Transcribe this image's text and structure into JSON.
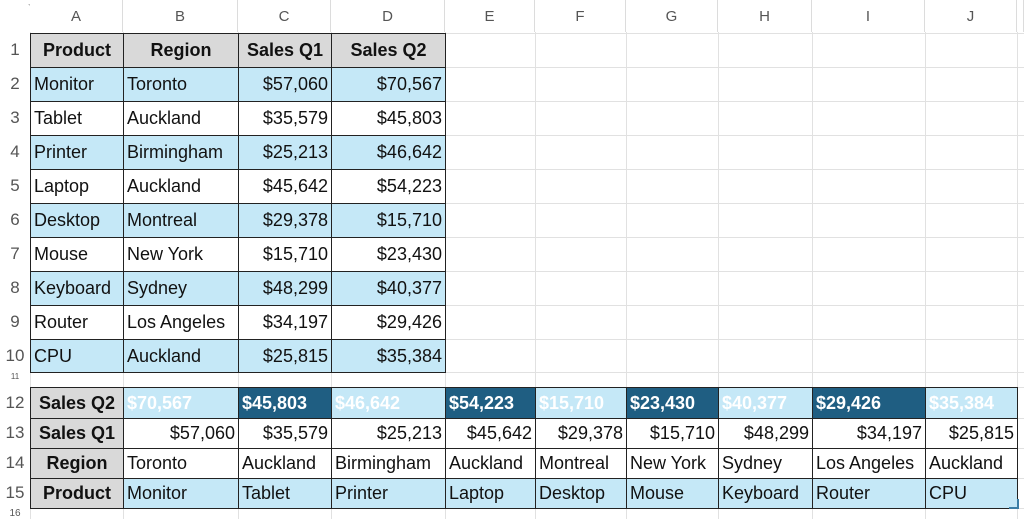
{
  "columns": [
    "A",
    "B",
    "C",
    "D",
    "E",
    "F",
    "G",
    "H",
    "I",
    "J"
  ],
  "rows": [
    "1",
    "2",
    "3",
    "4",
    "5",
    "6",
    "7",
    "8",
    "9",
    "10",
    "11",
    "12",
    "13",
    "14",
    "15",
    "16"
  ],
  "table1": {
    "headers": [
      "Product",
      "Region",
      "Sales Q1",
      "Sales Q2"
    ],
    "data": [
      [
        "Monitor",
        "Toronto",
        "$57,060",
        "$70,567"
      ],
      [
        "Tablet",
        "Auckland",
        "$35,579",
        "$45,803"
      ],
      [
        "Printer",
        "Birmingham",
        "$25,213",
        "$46,642"
      ],
      [
        "Laptop",
        "Auckland",
        "$45,642",
        "$54,223"
      ],
      [
        "Desktop",
        "Montreal",
        "$29,378",
        "$15,710"
      ],
      [
        "Mouse",
        "New York",
        "$15,710",
        "$23,430"
      ],
      [
        "Keyboard",
        "Sydney",
        "$48,299",
        "$40,377"
      ],
      [
        "Router",
        "Los Angeles",
        "$34,197",
        "$29,426"
      ],
      [
        "CPU",
        "Auckland",
        "$25,815",
        "$35,384"
      ]
    ]
  },
  "table2": {
    "labels": [
      "Sales Q2",
      "Sales Q1",
      "Region",
      "Product"
    ],
    "sales_q2": [
      "$70,567",
      "$45,803",
      "$46,642",
      "$54,223",
      "$15,710",
      "$23,430",
      "$40,377",
      "$29,426",
      "$35,384"
    ],
    "sales_q1": [
      "$57,060",
      "$35,579",
      "$25,213",
      "$45,642",
      "$29,378",
      "$15,710",
      "$48,299",
      "$34,197",
      "$25,815"
    ],
    "region": [
      "Toronto",
      "Auckland",
      "Birmingham",
      "Auckland",
      "Montreal",
      "New York",
      "Sydney",
      "Los Angeles",
      "Auckland"
    ],
    "product": [
      "Monitor",
      "Tablet",
      "Printer",
      "Laptop",
      "Desktop",
      "Mouse",
      "Keyboard",
      "Router",
      "CPU"
    ]
  },
  "colors": {
    "header_gray": "#d9d9d9",
    "light_blue": "#c5e8f7",
    "dark_blue": "#1f5e82"
  }
}
